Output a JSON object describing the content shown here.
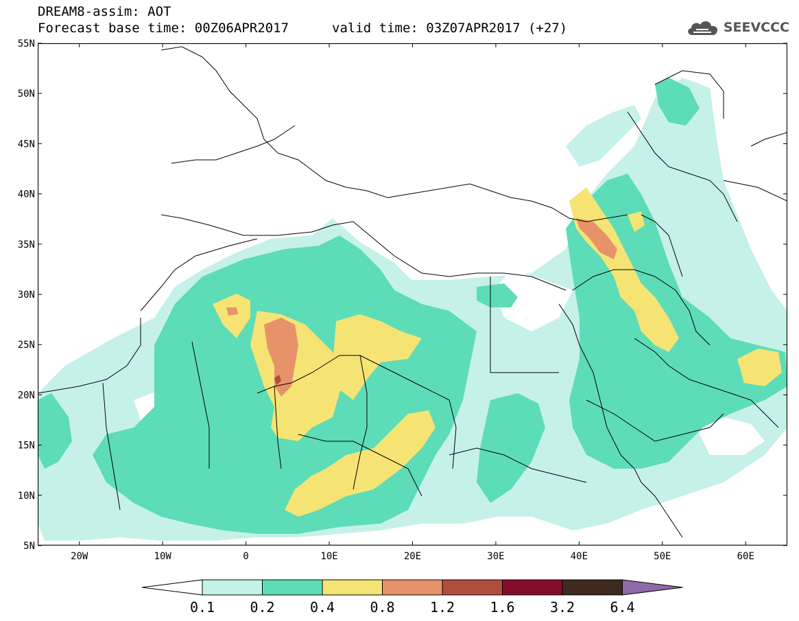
{
  "header": {
    "title_line1": "DREAM8-assim: AOT",
    "forecast_base": "Forecast base time: 00Z06APR2017",
    "valid_time": "valid time: 03Z07APR2017 (+27)"
  },
  "logo": {
    "text": "SEEVCCC",
    "icon": "cloud-icon"
  },
  "map": {
    "lon_range": [
      -25,
      65
    ],
    "lat_range": [
      5,
      55
    ],
    "lat_ticks": [
      "55N",
      "50N",
      "45N",
      "40N",
      "35N",
      "30N",
      "25N",
      "20N",
      "15N",
      "10N",
      "5N"
    ],
    "lon_ticks": [
      "20W",
      "10W",
      "0",
      "10E",
      "20E",
      "30E",
      "40E",
      "50E",
      "60E"
    ]
  },
  "colorbar": {
    "colors": [
      "#ffffff",
      "#c6f1e8",
      "#5ddcb8",
      "#f5e474",
      "#e8926a",
      "#b04e3e",
      "#840c2c",
      "#3e2a1e",
      "#8f6aa8"
    ],
    "labels": [
      "0.1",
      "0.2",
      "0.4",
      "0.8",
      "1.2",
      "1.6",
      "3.2",
      "6.4"
    ]
  }
}
